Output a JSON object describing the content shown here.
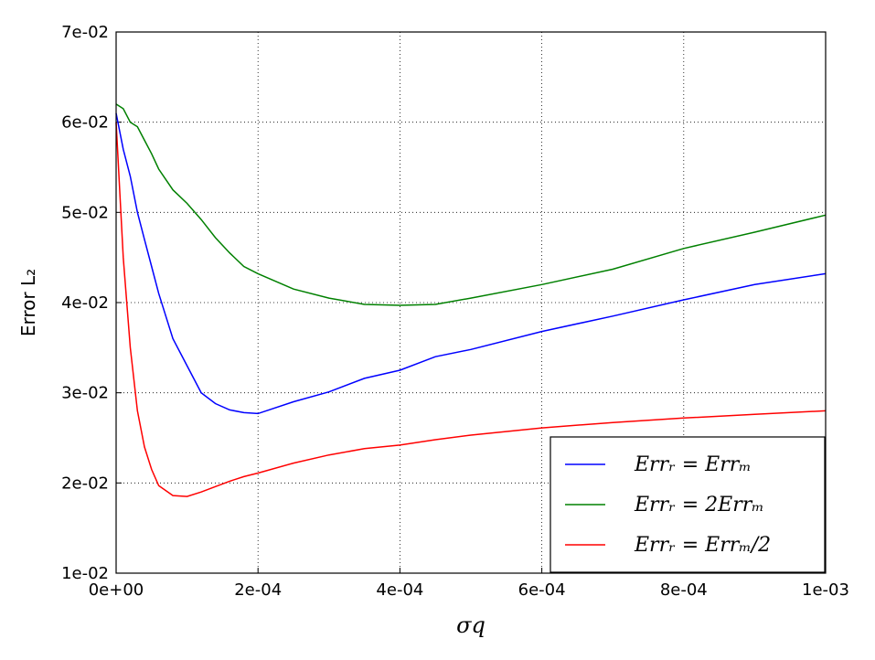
{
  "chart_data": {
    "type": "line",
    "xlabel": "σq",
    "ylabel": "Error L₂",
    "x": [
      0,
      1e-05,
      2e-05,
      3e-05,
      4e-05,
      5e-05,
      6e-05,
      8e-05,
      0.0001,
      0.00012,
      0.00014,
      0.00016,
      0.00018,
      0.0002,
      0.00025,
      0.0003,
      0.00035,
      0.0004,
      0.00045,
      0.0005,
      0.0006,
      0.0007,
      0.0008,
      0.0009,
      0.001
    ],
    "series": [
      {
        "name": "Errᵣ = Errₘ",
        "color": "#0000ff",
        "values": [
          0.061,
          0.057,
          0.054,
          0.05,
          0.047,
          0.044,
          0.041,
          0.036,
          0.033,
          0.03,
          0.0288,
          0.0281,
          0.0278,
          0.0277,
          0.029,
          0.0301,
          0.0316,
          0.0325,
          0.034,
          0.0348,
          0.0368,
          0.0385,
          0.0403,
          0.042,
          0.0432
        ]
      },
      {
        "name": "Errᵣ = 2Errₘ",
        "color": "#008000",
        "values": [
          0.062,
          0.0615,
          0.06,
          0.0595,
          0.058,
          0.0565,
          0.0548,
          0.0525,
          0.051,
          0.0492,
          0.0472,
          0.0455,
          0.044,
          0.0432,
          0.0415,
          0.0405,
          0.0398,
          0.0397,
          0.0398,
          0.0405,
          0.042,
          0.0437,
          0.046,
          0.0478,
          0.0497
        ]
      },
      {
        "name": "Errᵣ = Errₘ/2",
        "color": "#ff0000",
        "values": [
          0.06,
          0.045,
          0.035,
          0.028,
          0.024,
          0.0215,
          0.0197,
          0.0186,
          0.0185,
          0.019,
          0.0196,
          0.0202,
          0.0207,
          0.0211,
          0.0222,
          0.0231,
          0.0238,
          0.0242,
          0.0248,
          0.0253,
          0.0261,
          0.0267,
          0.0272,
          0.0276,
          0.028
        ]
      }
    ],
    "xlim": [
      0,
      0.001
    ],
    "ylim": [
      0.01,
      0.07
    ],
    "xticks": [
      {
        "value": 0,
        "label": "0e+00"
      },
      {
        "value": 0.0002,
        "label": "2e-04"
      },
      {
        "value": 0.0004,
        "label": "4e-04"
      },
      {
        "value": 0.0006,
        "label": "6e-04"
      },
      {
        "value": 0.0008,
        "label": "8e-04"
      },
      {
        "value": 0.001,
        "label": "1e-03"
      }
    ],
    "yticks": [
      {
        "value": 0.01,
        "label": "1e-02"
      },
      {
        "value": 0.02,
        "label": "2e-02"
      },
      {
        "value": 0.03,
        "label": "3e-02"
      },
      {
        "value": 0.04,
        "label": "4e-02"
      },
      {
        "value": 0.05,
        "label": "5e-02"
      },
      {
        "value": 0.06,
        "label": "6e-02"
      },
      {
        "value": 0.07,
        "label": "7e-02"
      }
    ],
    "grid": true,
    "legend": "lower right"
  }
}
